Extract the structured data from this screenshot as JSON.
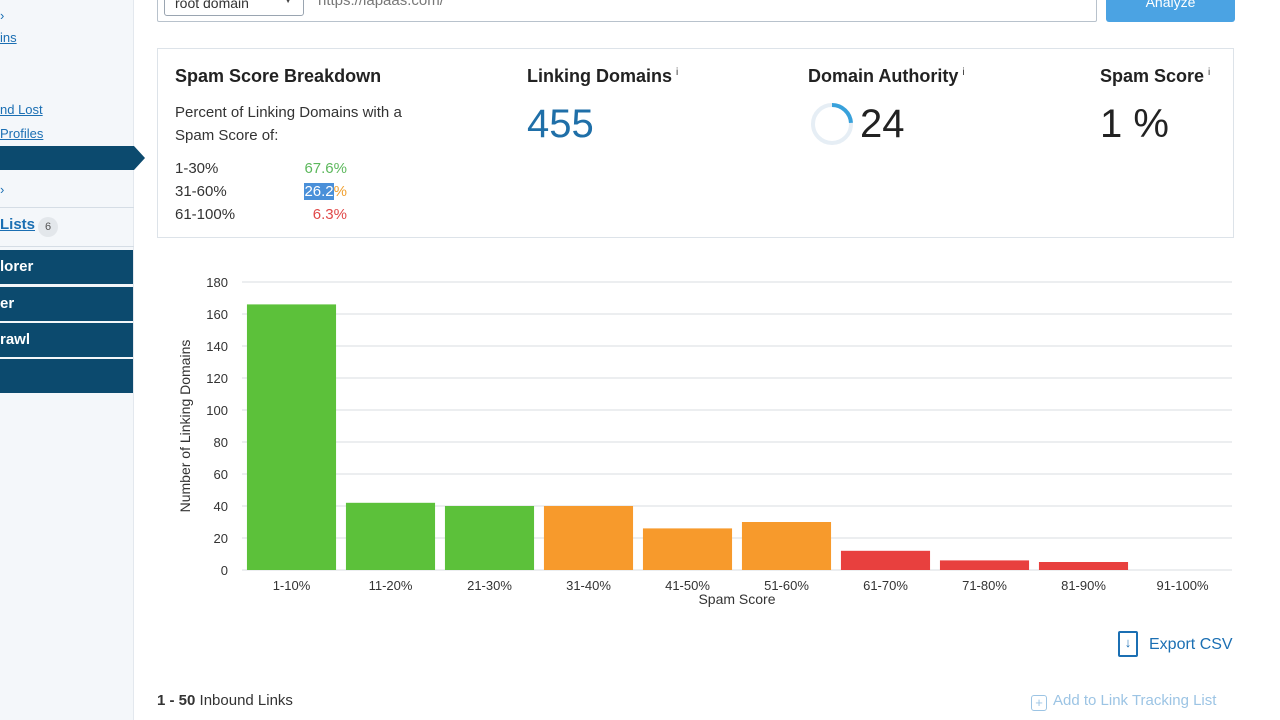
{
  "sidebar": {
    "fragments": [
      {
        "text": "ins"
      },
      {
        "text": "nd Lost"
      },
      {
        "text": " Profiles"
      }
    ],
    "lists_label": "Lists",
    "lists_count": "6",
    "dark_items": [
      "lorer",
      "er",
      "rawl",
      ""
    ]
  },
  "search": {
    "scope_value": "root domain",
    "url_value": "https://lapaas.com/",
    "analyze_label": "Analyze"
  },
  "summary": {
    "breakdown_title": "Spam Score Breakdown",
    "breakdown_subtitle": "Percent of Linking Domains with a Spam Score of:",
    "breakdown": [
      {
        "range": "1-30%",
        "value": "67.6%",
        "color": "#5cb85c"
      },
      {
        "range": "31-60%",
        "value_hl": "26.2",
        "value_rest": "%",
        "color": "#f0a030"
      },
      {
        "range": "61-100%",
        "value": "6.3%",
        "color": "#e04848"
      }
    ],
    "linking_domains_label": "Linking Domains",
    "linking_domains_value": "455",
    "domain_authority_label": "Domain Authority",
    "domain_authority_value": "24",
    "domain_authority_fraction": 0.24,
    "spam_score_label": "Spam Score",
    "spam_score_value": "1 %",
    "info_glyph": "i"
  },
  "chart_data": {
    "type": "bar",
    "categories": [
      "1-10%",
      "11-20%",
      "21-30%",
      "31-40%",
      "41-50%",
      "51-60%",
      "61-70%",
      "71-80%",
      "81-90%",
      "91-100%"
    ],
    "values": [
      166,
      42,
      40,
      40,
      26,
      30,
      12,
      6,
      5,
      0
    ],
    "colors": [
      "#5cc13a",
      "#5cc13a",
      "#5cc13a",
      "#f79a2c",
      "#f79a2c",
      "#f79a2c",
      "#e8403e",
      "#e8403e",
      "#e8403e",
      "#e8403e"
    ],
    "xlabel": "Spam Score",
    "ylabel": "Number of Linking Domains",
    "ylim": [
      0,
      180
    ],
    "yticks": [
      0,
      20,
      40,
      60,
      80,
      100,
      120,
      140,
      160,
      180
    ],
    "grid": true
  },
  "footer": {
    "export_label": "Export CSV",
    "results_range": "1 - 50",
    "results_label": " Inbound Links",
    "add_tracking_label": "Add to Link Tracking List"
  }
}
